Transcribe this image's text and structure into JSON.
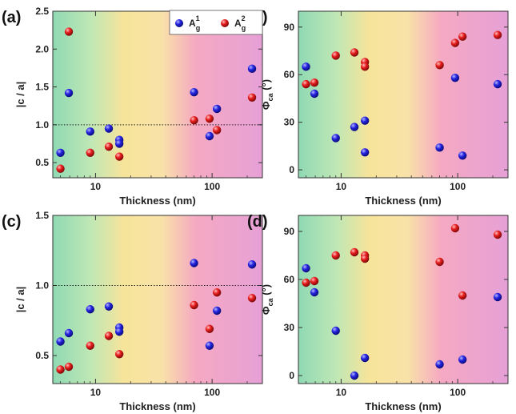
{
  "legend": {
    "series": [
      {
        "name": "A",
        "sup": "1",
        "sub": "g",
        "color": "#1f1fd6"
      },
      {
        "name": "A",
        "sup": "2",
        "sub": "g",
        "color": "#e01a1a"
      }
    ]
  },
  "colors": {
    "green": "#8fd9b3",
    "yellow": "#f7e49a",
    "pink": "#f5a9c2",
    "magenta": "#e6a0d6",
    "series1": "#1f1fd6",
    "series2": "#e01a1a"
  },
  "chart_data": [
    {
      "type": "scatter",
      "panel_label": "(a)",
      "xlabel": "Thickness (nm)",
      "ylabel": "|c / a|",
      "xscale": "log",
      "xlim": [
        4.3,
        270
      ],
      "ylim": [
        0.3,
        2.5
      ],
      "xticks": [
        10,
        100
      ],
      "xtick_labels": [
        "10",
        "100"
      ],
      "yticks": [
        0.5,
        1.0,
        1.5,
        2.0,
        2.5
      ],
      "ytick_labels": [
        "0.5",
        "1.0",
        "1.5",
        "2.0",
        "2.5"
      ],
      "reference_line": 1.0,
      "legend_position": "top-right",
      "series": [
        {
          "name": "A_g^1",
          "x": [
            5,
            5.9,
            9,
            13,
            16,
            16,
            70,
            95,
            110,
            220
          ],
          "y": [
            0.63,
            1.42,
            0.91,
            0.95,
            0.8,
            0.75,
            1.43,
            0.85,
            1.21,
            1.74
          ]
        },
        {
          "name": "A_g^2",
          "x": [
            5,
            5.9,
            9,
            13,
            16,
            70,
            95,
            110,
            220
          ],
          "y": [
            0.42,
            2.23,
            0.63,
            0.71,
            0.58,
            1.06,
            1.08,
            0.93,
            1.36
          ]
        }
      ]
    },
    {
      "type": "scatter",
      "panel_label": "(b)",
      "xlabel": "Thickness (nm)",
      "ylabel": "Φ_ca (°)",
      "xscale": "log",
      "xlim": [
        4.3,
        270
      ],
      "ylim": [
        -5,
        100
      ],
      "xticks": [
        10,
        100
      ],
      "xtick_labels": [
        "10",
        "100"
      ],
      "yticks": [
        0,
        30,
        60,
        90
      ],
      "ytick_labels": [
        "0",
        "30",
        "60",
        "90"
      ],
      "reference_line": null,
      "series": [
        {
          "name": "A_g^1",
          "x": [
            5,
            5.9,
            9,
            13,
            16,
            16,
            70,
            95,
            110,
            220
          ],
          "y": [
            65,
            48,
            20,
            27,
            31,
            11,
            14,
            58,
            9,
            54
          ]
        },
        {
          "name": "A_g^2",
          "x": [
            5,
            5.9,
            9,
            13,
            16,
            16,
            70,
            95,
            110,
            220
          ],
          "y": [
            54,
            55,
            72,
            74,
            68,
            65,
            66,
            80,
            84,
            85
          ]
        }
      ]
    },
    {
      "type": "scatter",
      "panel_label": "(c)",
      "xlabel": "Thickness (nm)",
      "ylabel": "|c / a|",
      "xscale": "log",
      "xlim": [
        4.3,
        270
      ],
      "ylim": [
        0.3,
        1.5
      ],
      "xticks": [
        10,
        100
      ],
      "xtick_labels": [
        "10",
        "100"
      ],
      "yticks": [
        0.5,
        1.0,
        1.5
      ],
      "ytick_labels": [
        "0.5",
        "1.0",
        "1.5"
      ],
      "reference_line": 1.0,
      "series": [
        {
          "name": "A_g^1",
          "x": [
            5,
            5.9,
            9,
            13,
            16,
            16,
            70,
            95,
            110,
            220
          ],
          "y": [
            0.6,
            0.66,
            0.83,
            0.85,
            0.7,
            0.67,
            1.16,
            0.57,
            0.82,
            1.15
          ]
        },
        {
          "name": "A_g^2",
          "x": [
            5,
            5.9,
            9,
            13,
            16,
            70,
            95,
            110,
            220
          ],
          "y": [
            0.4,
            0.42,
            0.57,
            0.64,
            0.51,
            0.86,
            0.69,
            0.95,
            0.91
          ]
        }
      ]
    },
    {
      "type": "scatter",
      "panel_label": "(d)",
      "xlabel": "Thickness (nm)",
      "ylabel": "Φ_ca (°)",
      "xscale": "log",
      "xlim": [
        4.3,
        270
      ],
      "ylim": [
        -5,
        100
      ],
      "xticks": [
        10,
        100
      ],
      "xtick_labels": [
        "10",
        "100"
      ],
      "yticks": [
        0,
        30,
        60,
        90
      ],
      "ytick_labels": [
        "0",
        "30",
        "60",
        "90"
      ],
      "reference_line": null,
      "series": [
        {
          "name": "A_g^1",
          "x": [
            5,
            5.9,
            9,
            13,
            16,
            70,
            110,
            220
          ],
          "y": [
            67,
            52,
            28,
            0,
            11,
            7,
            10,
            49
          ]
        },
        {
          "name": "A_g^2",
          "x": [
            5,
            5.9,
            9,
            13,
            16,
            16,
            70,
            95,
            110,
            220
          ],
          "y": [
            58,
            59,
            75,
            77,
            75,
            73,
            71,
            92,
            50,
            88
          ]
        }
      ]
    }
  ]
}
